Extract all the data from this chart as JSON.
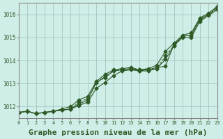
{
  "background_color": "#d0eee8",
  "grid_color": "#a0c8c0",
  "line_color": "#2d5a27",
  "marker_color": "#2d5a27",
  "xlabel": "Graphe pression niveau de la mer (hPa)",
  "xlabel_fontsize": 8,
  "yticks": [
    1012,
    1013,
    1014,
    1015,
    1016
  ],
  "xticks": [
    0,
    1,
    2,
    3,
    4,
    5,
    6,
    7,
    8,
    9,
    10,
    11,
    12,
    13,
    14,
    15,
    16,
    17,
    18,
    19,
    20,
    21,
    22,
    23
  ],
  "xlim": [
    0,
    23
  ],
  "ylim": [
    1011.5,
    1016.5
  ],
  "series1": [
    1011.75,
    1011.8,
    1011.7,
    1011.75,
    1011.8,
    1011.85,
    1011.9,
    1012.1,
    1012.3,
    1013.05,
    1013.3,
    1013.55,
    1013.6,
    1013.65,
    1013.6,
    1013.6,
    1013.7,
    1013.75,
    1014.7,
    1015.05,
    1015.1,
    1015.8,
    1016.0,
    1016.3
  ],
  "series2": [
    1011.75,
    1011.8,
    1011.7,
    1011.75,
    1011.8,
    1011.85,
    1011.9,
    1012.05,
    1012.2,
    1012.8,
    1013.05,
    1013.35,
    1013.55,
    1013.6,
    1013.55,
    1013.55,
    1013.65,
    1014.05,
    1014.65,
    1015.0,
    1015.0,
    1015.7,
    1015.95,
    1016.2
  ],
  "series3": [
    1011.75,
    1011.8,
    1011.7,
    1011.75,
    1011.8,
    1011.85,
    1011.9,
    1012.2,
    1012.35,
    1013.05,
    1013.25,
    1013.55,
    1013.6,
    1013.65,
    1013.55,
    1013.6,
    1013.65,
    1014.2,
    1014.65,
    1015.05,
    1015.1,
    1015.75,
    1016.0,
    1016.25
  ],
  "series4": [
    1011.75,
    1011.8,
    1011.7,
    1011.75,
    1011.8,
    1011.9,
    1012.0,
    1012.3,
    1012.45,
    1013.1,
    1013.4,
    1013.6,
    1013.65,
    1013.7,
    1013.6,
    1013.65,
    1013.8,
    1014.4,
    1014.75,
    1015.1,
    1015.2,
    1015.85,
    1016.05,
    1016.35
  ],
  "linewidths": [
    0.8,
    0.8,
    0.7,
    0.8
  ],
  "linestyles": [
    "-",
    "-",
    "--",
    "-"
  ]
}
